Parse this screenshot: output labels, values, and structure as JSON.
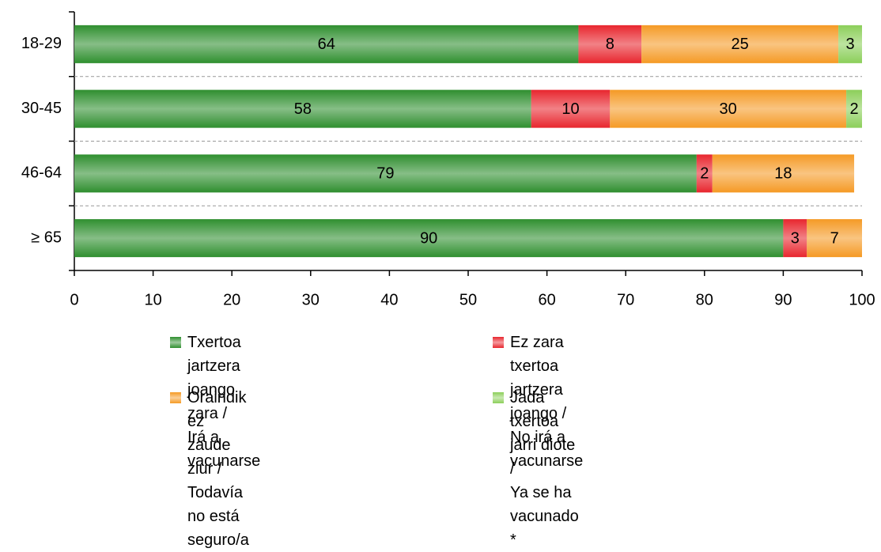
{
  "chart_data": {
    "type": "stacked-bar-horizontal",
    "categories": [
      "18-29",
      "30-45",
      "46-64",
      "≥ 65"
    ],
    "series": [
      {
        "name": "Txertoa jartzera joango zara /\nIrá a vacunarse",
        "color": "#2f8f2f",
        "values": [
          64,
          58,
          79,
          90
        ]
      },
      {
        "name": "Ez zara txertoa jartzera joango /\nNo irá a vacunarse",
        "color": "#e8262e",
        "values": [
          8,
          10,
          2,
          3
        ]
      },
      {
        "name": "Oraindik ez zaude ziur /\nTodavía no está seguro/a",
        "color": "#f59a25",
        "values": [
          25,
          30,
          18,
          7
        ]
      },
      {
        "name": "Jada txertoa jarri diote /\nYa se ha vacunado *",
        "color": "#8ccf5a",
        "values": [
          3,
          2,
          null,
          null
        ]
      }
    ],
    "xlim": [
      0,
      100
    ],
    "xticks": [
      0,
      10,
      20,
      30,
      40,
      50,
      60,
      70,
      80,
      90,
      100
    ]
  }
}
